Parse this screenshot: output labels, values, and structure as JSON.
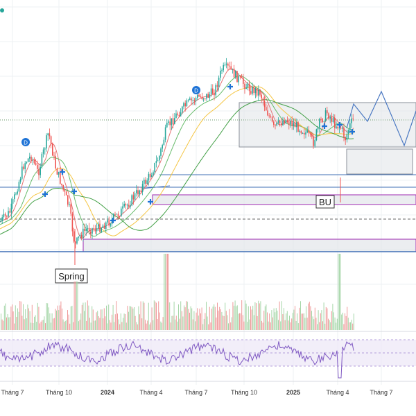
{
  "chart_data": {
    "type": "candlestick",
    "x_tick_labels": [
      "Tháng 7",
      "Tháng 10",
      "2024",
      "Tháng 4",
      "Tháng 7",
      "Tháng 10",
      "2025",
      "Tháng 4",
      "Tháng 7"
    ],
    "annotations": {
      "spring": "Spring",
      "bu": "BU",
      "marker_letter": "D"
    },
    "legend": "none",
    "grid": true,
    "panels": [
      "price",
      "volume",
      "rsi"
    ],
    "colors": {
      "up": "#26a69a",
      "down": "#ef5350",
      "ma_fast": "#e57373",
      "ma_mid": "#66bb6a",
      "ma_slow": "#f5c542",
      "ma_long": "#43a047",
      "support_line": "#3f6fb5",
      "box_border": "#9c27b0",
      "projection": "#4a78c2",
      "rsi_line": "#7e57c2",
      "rsi_band": "#ede7f6",
      "marker": "#1e73d6"
    }
  }
}
